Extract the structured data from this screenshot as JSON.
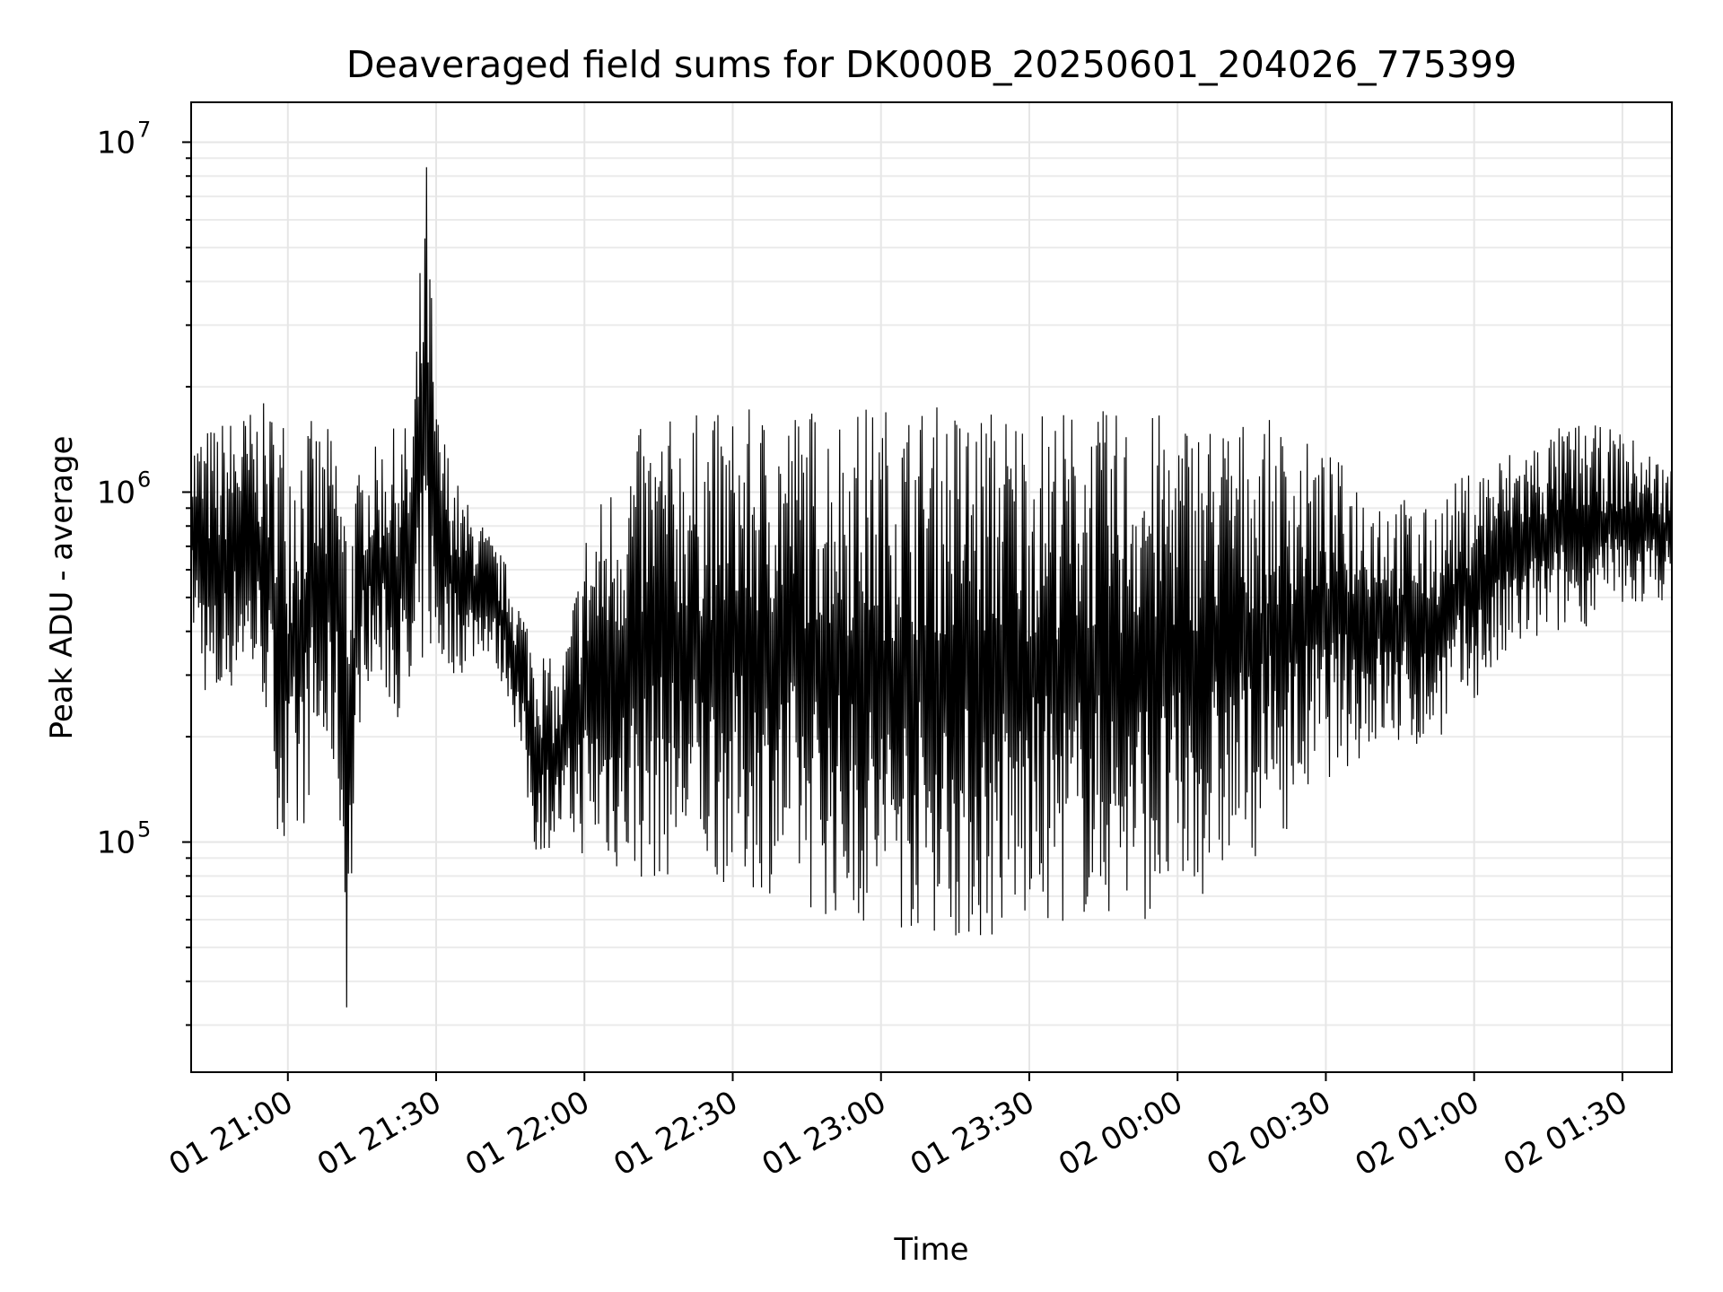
{
  "chart_data": {
    "type": "line",
    "title": "Deaveraged field sums for DK000B_20250601_204026_775399",
    "xlabel": "Time",
    "ylabel": "Peak ADU - average",
    "xscale": "time",
    "yscale": "log",
    "grid": true,
    "legend": "none",
    "xlim": [
      "2025-06-01 20:40:26",
      "2025-06-02 01:40:00"
    ],
    "ylim": [
      22000,
      13000000
    ],
    "x_ticks": [
      {
        "value": "2025-06-01 21:00",
        "label": "01 21:00"
      },
      {
        "value": "2025-06-01 21:30",
        "label": "01 21:30"
      },
      {
        "value": "2025-06-01 22:00",
        "label": "01 22:00"
      },
      {
        "value": "2025-06-01 22:30",
        "label": "01 22:30"
      },
      {
        "value": "2025-06-01 23:00",
        "label": "01 23:00"
      },
      {
        "value": "2025-06-01 23:30",
        "label": "01 23:30"
      },
      {
        "value": "2025-06-02 00:00",
        "label": "02 00:00"
      },
      {
        "value": "2025-06-02 00:30",
        "label": "02 00:30"
      },
      {
        "value": "2025-06-02 01:00",
        "label": "02 01:00"
      },
      {
        "value": "2025-06-02 01:30",
        "label": "02 01:30"
      }
    ],
    "y_ticks": [
      {
        "value": 100000,
        "base": "10",
        "exp": "5"
      },
      {
        "value": 1000000,
        "base": "10",
        "exp": "6"
      },
      {
        "value": 10000000,
        "base": "10",
        "exp": "7"
      }
    ],
    "series_color": "#000000",
    "series": [
      {
        "x": [
          "2025-06-01 20:40:26",
          "2025-06-01 20:45:00",
          "2025-06-01 20:50:00",
          "2025-06-01 20:55:00",
          "2025-06-01 21:00:00",
          "2025-06-01 21:05:00",
          "2025-06-01 21:10:00",
          "2025-06-01 21:12:00",
          "2025-06-01 21:15:00",
          "2025-06-01 21:20:00",
          "2025-06-01 21:25:00",
          "2025-06-01 21:28:00",
          "2025-06-01 21:30:00",
          "2025-06-01 21:35:00",
          "2025-06-01 21:40:00",
          "2025-06-01 21:45:00",
          "2025-06-01 21:50:00",
          "2025-06-01 21:55:00",
          "2025-06-01 22:00:00",
          "2025-06-01 22:10:00",
          "2025-06-01 22:20:00",
          "2025-06-01 22:30:00",
          "2025-06-01 22:40:00",
          "2025-06-01 22:50:00",
          "2025-06-01 23:00:00",
          "2025-06-01 23:10:00",
          "2025-06-01 23:20:00",
          "2025-06-01 23:30:00",
          "2025-06-01 23:40:00",
          "2025-06-01 23:50:00",
          "2025-06-02 00:00:00",
          "2025-06-02 00:10:00",
          "2025-06-02 00:20:00",
          "2025-06-02 00:30:00",
          "2025-06-02 00:40:00",
          "2025-06-02 00:50:00",
          "2025-06-02 01:00:00",
          "2025-06-02 01:10:00",
          "2025-06-02 01:20:00",
          "2025-06-02 01:30:00",
          "2025-06-02 01:40:00"
        ],
        "low": [
          400000,
          200000,
          300000,
          250000,
          60000,
          150000,
          150000,
          30000,
          300000,
          250000,
          200000,
          350000,
          300000,
          300000,
          350000,
          250000,
          90000,
          100000,
          90000,
          75000,
          80000,
          75000,
          70000,
          60000,
          55000,
          55000,
          50000,
          55000,
          60000,
          60000,
          60000,
          80000,
          100000,
          150000,
          180000,
          180000,
          250000,
          350000,
          400000,
          450000,
          500000
        ],
        "high": [
          1500000,
          1600000,
          1700000,
          1800000,
          1800000,
          1600000,
          1500000,
          1000000,
          1200000,
          1500000,
          1600000,
          9500000,
          1800000,
          1000000,
          800000,
          600000,
          400000,
          300000,
          800000,
          1500000,
          1700000,
          1700000,
          1800000,
          1800000,
          1800000,
          1800000,
          1800000,
          1800000,
          1750000,
          1700000,
          1700000,
          1650000,
          1600000,
          1300000,
          1100000,
          900000,
          1200000,
          1400000,
          1600000,
          1500000,
          1200000
        ]
      }
    ]
  }
}
